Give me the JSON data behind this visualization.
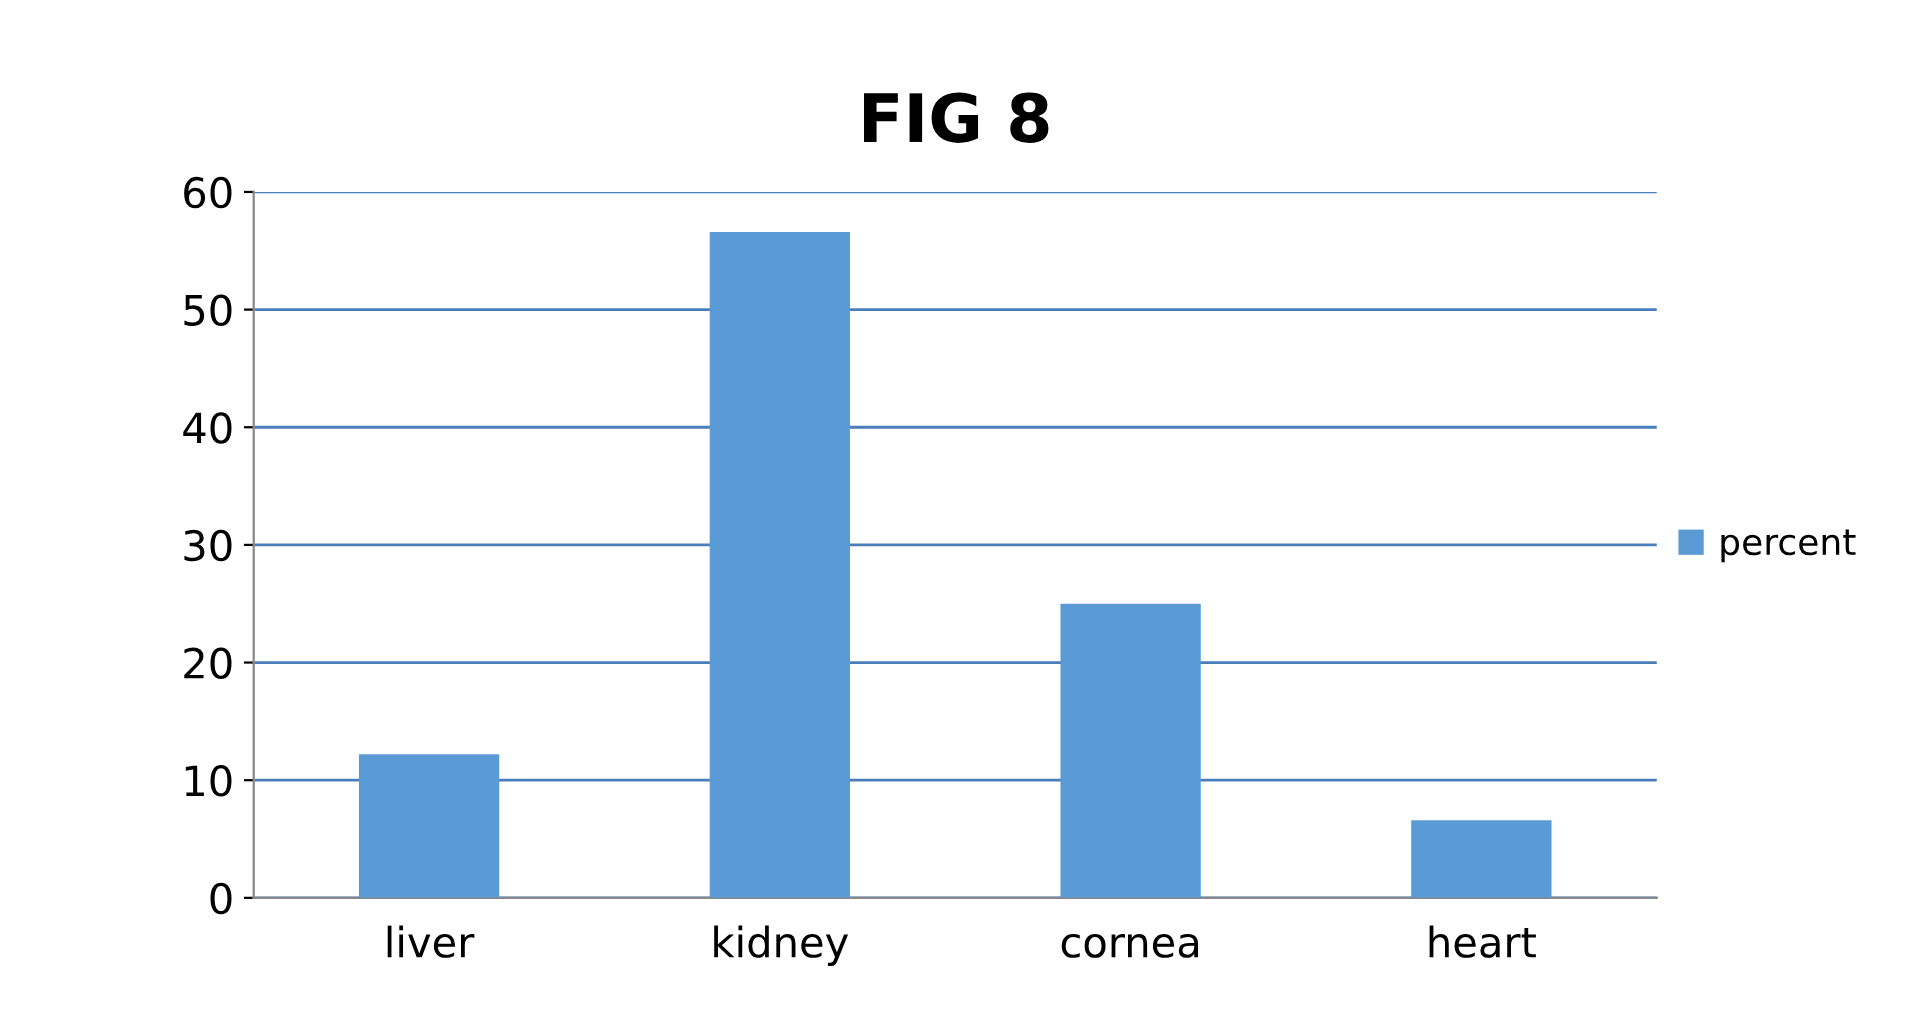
{
  "chart_data": {
    "type": "bar",
    "title": "FIG 8",
    "categories": [
      "liver",
      "kidney",
      "cornea",
      "heart"
    ],
    "series": [
      {
        "name": "percent",
        "color": "#5b9bd5",
        "values": [
          12.2,
          56.6,
          25.0,
          6.6
        ]
      }
    ],
    "ylim": [
      0,
      60
    ],
    "yticks": [
      0,
      10,
      20,
      30,
      40,
      50,
      60
    ],
    "grid": "y",
    "legend": "right"
  }
}
